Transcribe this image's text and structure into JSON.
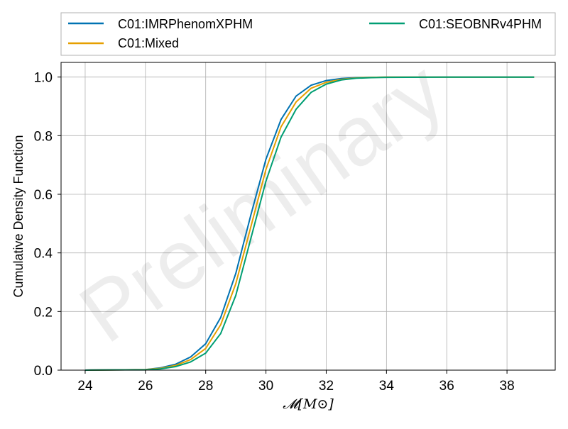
{
  "watermark": "Preliminary",
  "legend": {
    "items": [
      "C01:IMRPhenomXPHM",
      "C01:Mixed",
      "C01:SEOBNRv4PHM"
    ]
  },
  "chart_data": {
    "type": "line",
    "title": "",
    "xlabel": "𝓜[M⊙]",
    "ylabel": "Cumulative Density Function",
    "xlim": [
      23.2,
      39.6
    ],
    "ylim": [
      0.0,
      1.05
    ],
    "xticks": [
      24,
      26,
      28,
      30,
      32,
      34,
      36,
      38
    ],
    "yticks": [
      0.0,
      0.2,
      0.4,
      0.6,
      0.8,
      1.0
    ],
    "xtick_labels": [
      "24",
      "26",
      "28",
      "30",
      "32",
      "34",
      "36",
      "38"
    ],
    "ytick_labels": [
      "0.0",
      "0.2",
      "0.4",
      "0.6",
      "0.8",
      "1.0"
    ],
    "grid": true,
    "legend_position": "top, above plot",
    "series": [
      {
        "name": "C01:IMRPhenomXPHM",
        "color": "#0072b2",
        "x": [
          24.0,
          25.0,
          26.0,
          26.5,
          27.0,
          27.5,
          28.0,
          28.5,
          29.0,
          29.5,
          30.0,
          30.5,
          31.0,
          31.5,
          32.0,
          32.5,
          33.0,
          33.5,
          34.0,
          36.0,
          38.9
        ],
        "y": [
          0.0,
          0.001,
          0.002,
          0.008,
          0.02,
          0.045,
          0.09,
          0.18,
          0.33,
          0.53,
          0.72,
          0.855,
          0.935,
          0.972,
          0.988,
          0.995,
          0.998,
          0.999,
          1.0,
          1.0,
          1.0
        ]
      },
      {
        "name": "C01:Mixed",
        "color": "#e69f00",
        "x": [
          24.0,
          25.0,
          26.0,
          26.5,
          27.0,
          27.5,
          28.0,
          28.5,
          29.0,
          29.5,
          30.0,
          30.5,
          31.0,
          31.5,
          32.0,
          32.5,
          33.0,
          33.5,
          34.0,
          36.0,
          38.9
        ],
        "y": [
          0.0,
          0.001,
          0.002,
          0.006,
          0.016,
          0.036,
          0.074,
          0.155,
          0.295,
          0.49,
          0.685,
          0.83,
          0.915,
          0.962,
          0.982,
          0.992,
          0.997,
          0.999,
          1.0,
          1.0,
          1.0
        ]
      },
      {
        "name": "C01:SEOBNRv4PHM",
        "color": "#009e73",
        "x": [
          24.0,
          25.0,
          26.0,
          26.5,
          27.0,
          27.5,
          28.0,
          28.5,
          29.0,
          29.5,
          30.0,
          30.5,
          31.0,
          31.5,
          32.0,
          32.5,
          33.0,
          33.5,
          34.0,
          36.0,
          38.9
        ],
        "y": [
          0.0,
          0.001,
          0.001,
          0.004,
          0.012,
          0.028,
          0.058,
          0.125,
          0.255,
          0.45,
          0.645,
          0.795,
          0.89,
          0.948,
          0.976,
          0.99,
          0.996,
          0.998,
          0.999,
          1.0,
          1.0
        ]
      }
    ]
  }
}
